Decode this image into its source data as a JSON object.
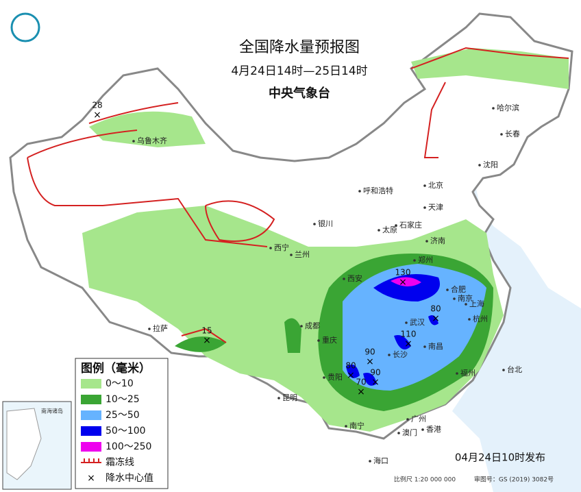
{
  "header": {
    "title": "全国降水量预报图",
    "subtitle": "4月24日14时—25日14时",
    "issuer": "中央气象台"
  },
  "legend": {
    "title": "图例（毫米）",
    "items": [
      {
        "label": "0～10",
        "color": "#a6e68c"
      },
      {
        "label": "10～25",
        "color": "#3aa534"
      },
      {
        "label": "25～50",
        "color": "#66b3ff"
      },
      {
        "label": "50～100",
        "color": "#0000ee"
      },
      {
        "label": "100～250",
        "color": "#ee00ee"
      },
      {
        "label": "霜冻线",
        "color": "#d42020"
      },
      {
        "label": "降水中心值",
        "color": "#000000"
      }
    ]
  },
  "cities": [
    "乌鲁木齐",
    "哈尔滨",
    "长春",
    "沈阳",
    "呼和浩特",
    "北京",
    "天津",
    "银川",
    "太原",
    "石家庄",
    "济南",
    "西宁",
    "兰州",
    "郑州",
    "西安",
    "合肥",
    "南京",
    "上海",
    "杭州",
    "武汉",
    "成都",
    "重庆",
    "长沙",
    "南昌",
    "拉萨",
    "贵阳",
    "昆明",
    "福州",
    "台北",
    "广州",
    "南宁",
    "澳门",
    "香港",
    "海口"
  ],
  "centers": [
    28,
    130,
    80,
    110,
    90,
    80,
    90,
    70,
    15
  ],
  "inset": {
    "label": "南海诸岛"
  },
  "footer": {
    "issued": "04月24日10时发布",
    "scale": "比例尺 1:20 000 000",
    "approval": "审图号：GS (2019) 3082号"
  }
}
